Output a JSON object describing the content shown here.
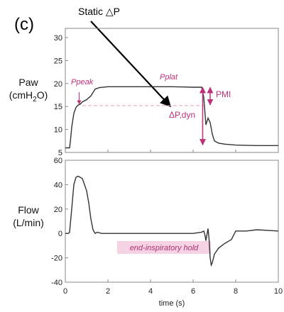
{
  "panel_label": "(c)",
  "callout_text": "Static △P",
  "colors": {
    "accent": "#c0307a",
    "trace": "#333333",
    "highlight": "#f6d3e4"
  },
  "chart_data": [
    {
      "type": "line",
      "ylabel_main": "Paw",
      "ylabel_unit_pre": "(cmH",
      "ylabel_unit_sub": "2",
      "ylabel_unit_post": "O)",
      "xlim": [
        0,
        10
      ],
      "ylim": [
        5,
        32
      ],
      "yticks": [
        5,
        10,
        15,
        20,
        25,
        30
      ],
      "ytick_labels": [
        "5",
        "10",
        "15",
        "20",
        "25",
        "30"
      ],
      "grid": false,
      "annotations": {
        "ppeak": "Ppeak",
        "pplat": "Pplat",
        "pmi": "PMI",
        "dpdyn": "ΔP,dyn"
      },
      "reference_levels": {
        "ppeak": 15.2,
        "pplat": 19.3,
        "peep": 6.5
      },
      "series": [
        {
          "x": [
            0.0,
            0.2,
            0.24,
            0.3,
            0.4,
            0.5,
            0.6,
            0.7,
            0.8,
            1.0,
            1.2,
            1.4,
            1.6,
            2.0,
            3.0,
            4.0,
            5.0,
            6.0,
            6.4,
            6.5,
            6.6,
            6.7,
            6.8,
            6.9,
            7.0,
            7.2,
            7.5,
            8.0,
            9.0,
            10.0
          ],
          "y": [
            6.0,
            6.0,
            7.5,
            10.5,
            13.5,
            14.8,
            15.3,
            15.5,
            16.0,
            16.5,
            17.3,
            18.8,
            19.1,
            19.3,
            19.3,
            19.3,
            19.3,
            19.2,
            19.2,
            17.0,
            11.0,
            12.5,
            11.5,
            9.0,
            7.5,
            7.0,
            6.8,
            6.6,
            6.5,
            6.5
          ]
        }
      ]
    },
    {
      "type": "line",
      "ylabel_main": "Flow",
      "ylabel_unit": "(L/min)",
      "xlabel": "time (s)",
      "xlim": [
        0,
        10
      ],
      "ylim": [
        -40,
        60
      ],
      "yticks": [
        -40,
        -20,
        0,
        20,
        40,
        60
      ],
      "ytick_labels": [
        "-40",
        "-20",
        "0",
        "20",
        "40",
        "60"
      ],
      "xticks": [
        0,
        2,
        4,
        6,
        8,
        10
      ],
      "xtick_labels": [
        "0",
        "2",
        "4",
        "6",
        "8",
        "10"
      ],
      "grid": false,
      "annotations": {
        "hold": "end-inspiratory hold"
      },
      "series": [
        {
          "x": [
            0.0,
            0.15,
            0.2,
            0.3,
            0.4,
            0.5,
            0.6,
            0.7,
            0.8,
            0.9,
            1.0,
            1.1,
            1.2,
            1.3,
            1.4,
            1.5,
            1.7,
            2.0,
            3.0,
            4.0,
            5.0,
            6.0,
            6.4,
            6.5,
            6.55,
            6.6,
            6.7,
            6.75,
            6.8,
            6.85,
            6.9,
            7.0,
            7.2,
            7.5,
            7.8,
            8.0,
            8.5,
            9.0,
            10.0
          ],
          "y": [
            0,
            0,
            1,
            20,
            40,
            46,
            47,
            46,
            45,
            40,
            35,
            25,
            12,
            3,
            0,
            1,
            0,
            0,
            0,
            0,
            0,
            0,
            1,
            2,
            -1,
            -6,
            4,
            -5,
            -20,
            -26,
            -24,
            -17,
            -12,
            -8,
            -5,
            2,
            2,
            3,
            2
          ]
        }
      ]
    }
  ]
}
